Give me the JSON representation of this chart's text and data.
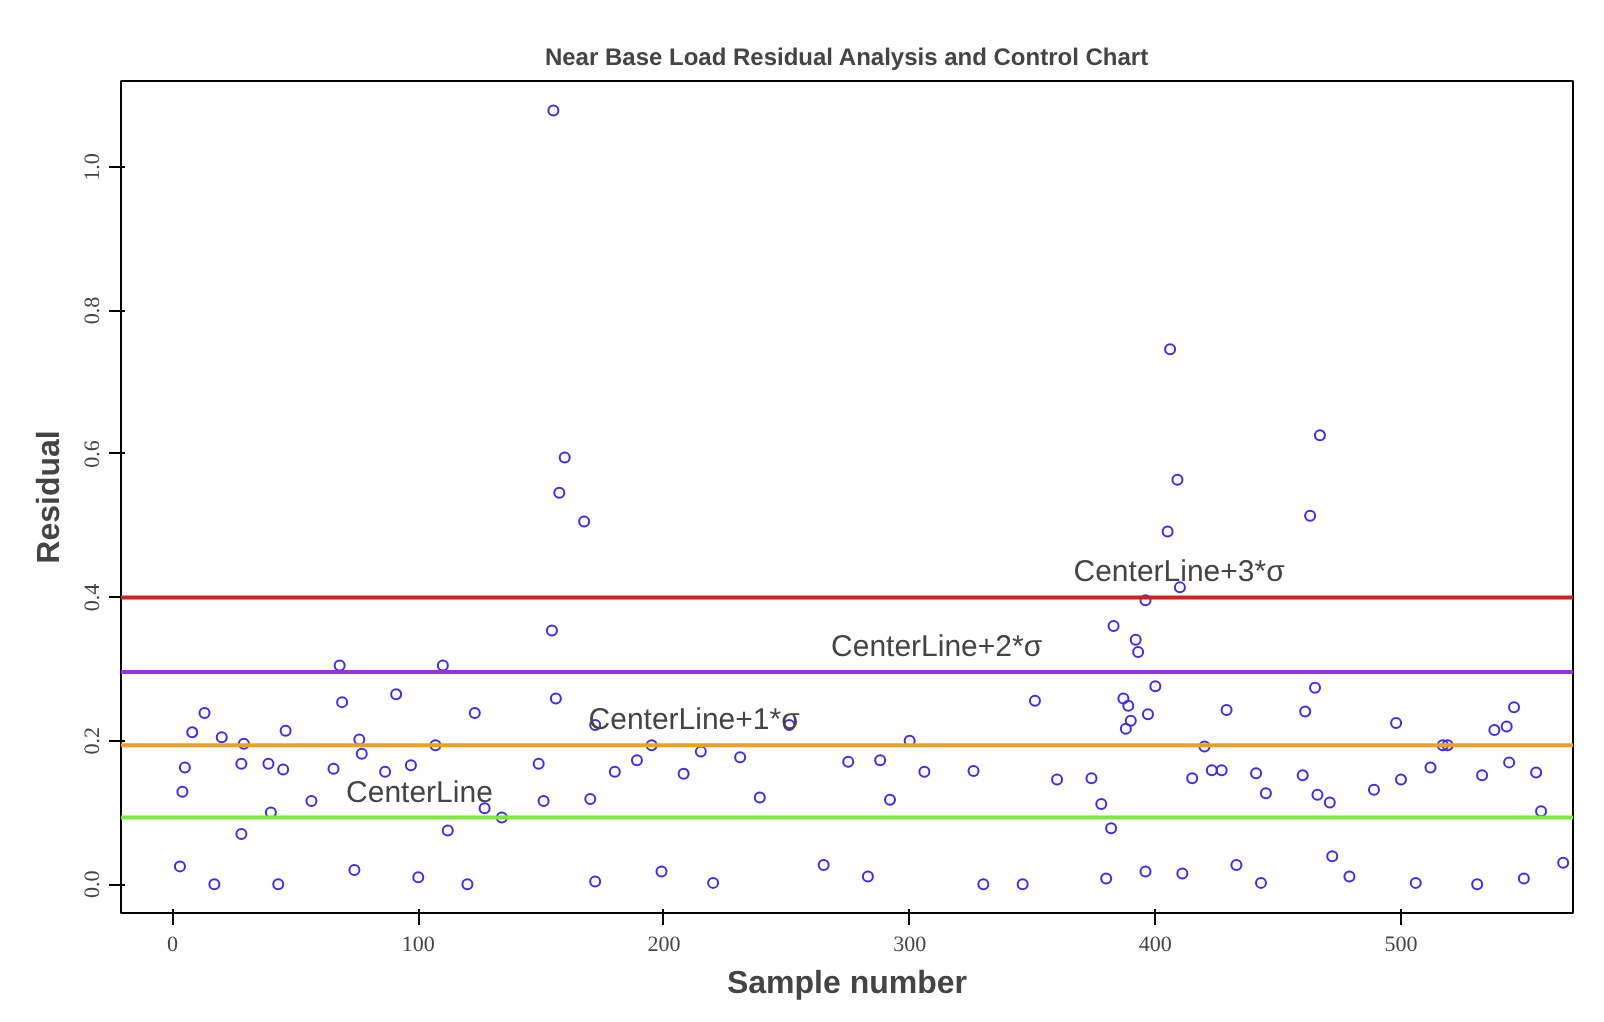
{
  "chart_data": {
    "type": "scatter",
    "title": "Near Base Load Residual Analysis and Control Chart",
    "xlabel": "Sample number",
    "ylabel": "Residual",
    "xlim": [
      -21,
      570
    ],
    "ylim": [
      -0.04,
      1.12
    ],
    "xticks": [
      0,
      100,
      200,
      300,
      400,
      500
    ],
    "yticks": [
      {
        "value": 0,
        "label": "0.0"
      },
      {
        "value": 0.2,
        "label": "0.2"
      },
      {
        "value": 0.4,
        "label": "0.4"
      },
      {
        "value": 0.6,
        "label": "0.6"
      },
      {
        "value": 0.8,
        "label": "0.8"
      },
      {
        "value": 1,
        "label": "1.0"
      }
    ],
    "grid": false,
    "marker": "circle",
    "series": [
      {
        "color": "#3b2cf5",
        "x": [
          3,
          4,
          5,
          8,
          13,
          17,
          20,
          28,
          28,
          29,
          39,
          40,
          43,
          45,
          46,
          56.5,
          65.5,
          68,
          69,
          74,
          76,
          77,
          86.5,
          91,
          97,
          100,
          107,
          110,
          112,
          120,
          123,
          127,
          134,
          149,
          151,
          154.4,
          155,
          156,
          157.4,
          159.6,
          167.5,
          170,
          172,
          172,
          180,
          189,
          195,
          199,
          208,
          215,
          220,
          231,
          239,
          251,
          265,
          275,
          283,
          288,
          292,
          300,
          306,
          326,
          330,
          346,
          351,
          360,
          374,
          378,
          380,
          382,
          383,
          387,
          388,
          389,
          390,
          392,
          393,
          396,
          396,
          397,
          400,
          405,
          406,
          409,
          410,
          411,
          415,
          420,
          423,
          427,
          429,
          433,
          441,
          443,
          445,
          460,
          461,
          463,
          465,
          466,
          467,
          471,
          472,
          479,
          489,
          498,
          500,
          506,
          512,
          517,
          519,
          531,
          533,
          538,
          543,
          544,
          546,
          550,
          555,
          557,
          566
        ],
        "values": [
          0.025,
          0.129,
          0.163,
          0.212,
          0.239,
          0.0,
          0.205,
          0.168,
          0.07,
          0.196,
          0.168,
          0.1,
          0.0,
          0.16,
          0.214,
          0.116,
          0.161,
          0.305,
          0.254,
          0.02,
          0.202,
          0.182,
          0.157,
          0.265,
          0.166,
          0.01,
          0.194,
          0.305,
          0.075,
          0.0,
          0.239,
          0.106,
          0.093,
          0.168,
          0.116,
          0.354,
          1.079,
          0.259,
          0.546,
          0.595,
          0.506,
          0.119,
          0.222,
          0.004,
          0.157,
          0.173,
          0.194,
          0.018,
          0.154,
          0.185,
          0.002,
          0.177,
          0.121,
          0.222,
          0.027,
          0.171,
          0.011,
          0.173,
          0.118,
          0.2,
          0.157,
          0.158,
          0.0,
          0.0,
          0.256,
          0.146,
          0.148,
          0.112,
          0.008,
          0.078,
          0.36,
          0.259,
          0.217,
          0.249,
          0.228,
          0.341,
          0.324,
          0.396,
          0.018,
          0.237,
          0.276,
          0.492,
          0.746,
          0.564,
          0.414,
          0.015,
          0.148,
          0.192,
          0.159,
          0.159,
          0.243,
          0.027,
          0.155,
          0.002,
          0.127,
          0.152,
          0.241,
          0.514,
          0.274,
          0.125,
          0.626,
          0.114,
          0.039,
          0.011,
          0.132,
          0.225,
          0.146,
          0.002,
          0.163,
          0.194,
          0.194,
          0.0,
          0.152,
          0.215,
          0.22,
          0.17,
          0.247,
          0.008,
          0.156,
          0.102,
          0.03
        ]
      }
    ],
    "ref_lines": [
      {
        "axis": "y",
        "value": 0.093,
        "label": "CenterLine",
        "color": "#7ee83a"
      },
      {
        "axis": "y",
        "value": 0.194,
        "label": "CenterLine+1*σ",
        "color": "#f0a020"
      },
      {
        "axis": "y",
        "value": 0.296,
        "label": "CenterLine+2*σ",
        "color": "#9b30e0"
      },
      {
        "axis": "y",
        "value": 0.4,
        "label": "CenterLine+3*σ",
        "color": "#cc2222"
      }
    ]
  }
}
